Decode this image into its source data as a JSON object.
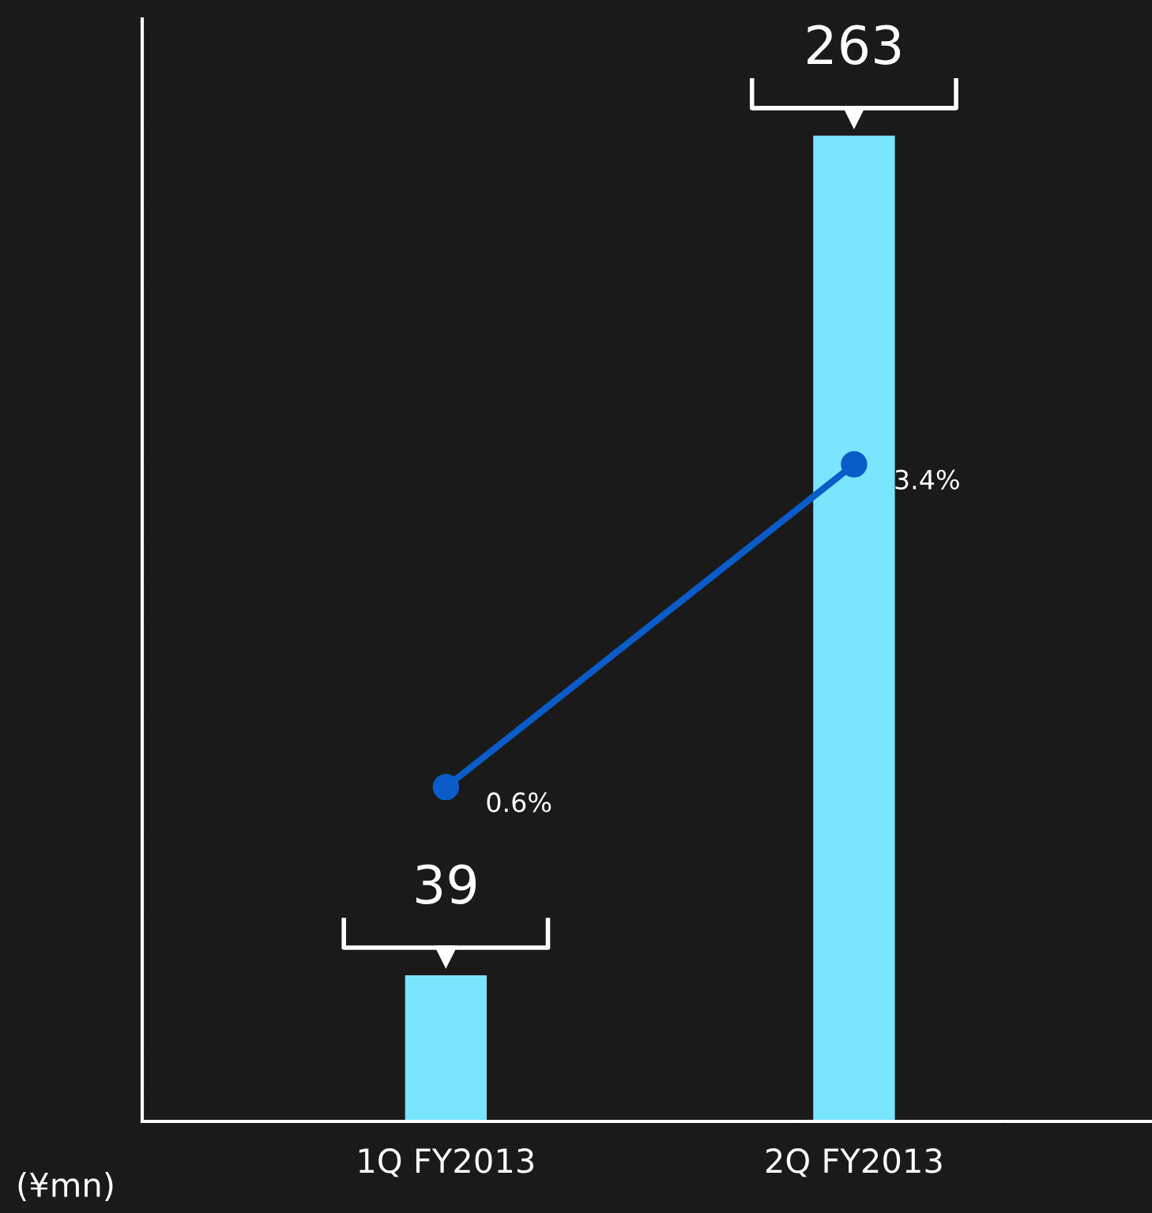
{
  "chart_data": {
    "type": "bar",
    "categories": [
      "1Q FY2013",
      "2Q FY2013"
    ],
    "series": [
      {
        "color": "#7ae5ff",
        "values": [
          39,
          263
        ],
        "data_labels": true
      },
      {
        "type": "line",
        "axis": "y2",
        "color": "#0a5cc8",
        "values": [
          0.6,
          3.4
        ],
        "value_labels": [
          "0.6%",
          "3.4%"
        ]
      }
    ],
    "ylim": [
      0,
      295
    ],
    "tick_labels": "x",
    "grid": false,
    "marker": "circle",
    "line_style": "solid",
    "annotations": [
      "(¥mn)"
    ]
  }
}
